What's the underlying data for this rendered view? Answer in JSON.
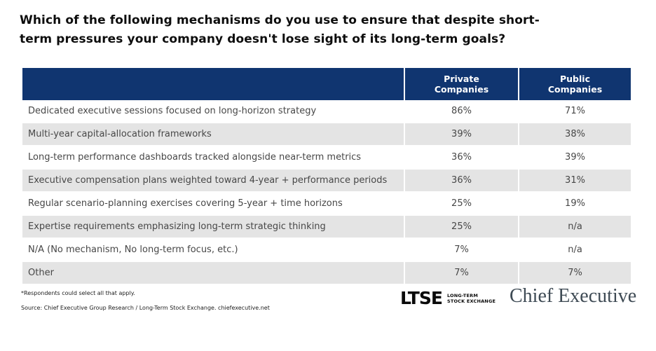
{
  "page": {
    "title_line1": "Which of the following mechanisms do you use to ensure that despite short-",
    "title_line2": "term pressures your company doesn't lose sight of its long-term goals?"
  },
  "table": {
    "header": {
      "mechanism": "",
      "private": "Private\nCompanies",
      "public": "Public\nCompanies"
    },
    "rows": [
      {
        "label": "Dedicated executive sessions focused on long-horizon strategy",
        "private": "86%",
        "public": "71%"
      },
      {
        "label": "Multi-year capital-allocation frameworks",
        "private": "39%",
        "public": "38%"
      },
      {
        "label": "Long-term performance dashboards tracked alongside near-term metrics",
        "private": "36%",
        "public": "39%"
      },
      {
        "label": "Executive compensation plans weighted toward 4-year + performance periods",
        "private": "36%",
        "public": "31%"
      },
      {
        "label": "Regular scenario-planning exercises covering 5-year + time horizons",
        "private": "25%",
        "public": "19%"
      },
      {
        "label": "Expertise requirements emphasizing long-term strategic thinking",
        "private": "25%",
        "public": "n/a"
      },
      {
        "label": "N/A (No mechanism, No long-term focus, etc.)",
        "private": "7%",
        "public": "n/a"
      },
      {
        "label": "Other",
        "private": "7%",
        "public": "7%"
      }
    ]
  },
  "footnotes": {
    "note": "*Respondents could select all that apply.",
    "source": "Source:  Chief Executive Group Research  / Long-Term Stock Exchange. chiefexecutive.net"
  },
  "logos": {
    "ltse": "LTSE",
    "ltse_sub_line1": "LONG-TERM",
    "ltse_sub_line2": "STOCK EXCHANGE",
    "chief_executive": "Chief Executive"
  },
  "colors": {
    "header_bg": "#103570",
    "stripe": "#E4E4E4",
    "title_text": "#0D0D0D",
    "body_text": "#474747",
    "chief_executive_text": "#3E4A54"
  },
  "chart_data": {
    "type": "table",
    "title": "Which of the following mechanisms do you use to ensure that despite short-term pressures your company doesn't lose sight of its long-term goals?",
    "columns": [
      "",
      "Private Companies",
      "Public Companies"
    ],
    "categories": [
      "Dedicated executive sessions focused on long-horizon strategy",
      "Multi-year capital-allocation frameworks",
      "Long-term performance dashboards tracked alongside near-term metrics",
      "Executive compensation plans weighted toward 4-year + performance periods",
      "Regular scenario-planning exercises covering 5-year + time horizons",
      "Expertise requirements emphasizing long-term strategic thinking",
      "N/A (No mechanism, No long-term focus, etc.)",
      "Other"
    ],
    "series": [
      {
        "name": "Private Companies",
        "values": [
          86,
          39,
          36,
          36,
          25,
          25,
          7,
          7
        ],
        "unit": "%"
      },
      {
        "name": "Public Companies",
        "values": [
          71,
          38,
          39,
          31,
          19,
          "n/a",
          "n/a",
          7
        ],
        "unit": "%"
      }
    ],
    "note": "*Respondents could select all that apply.",
    "source": "Source: Chief Executive Group Research / Long-Term Stock Exchange. chiefexecutive.net"
  }
}
